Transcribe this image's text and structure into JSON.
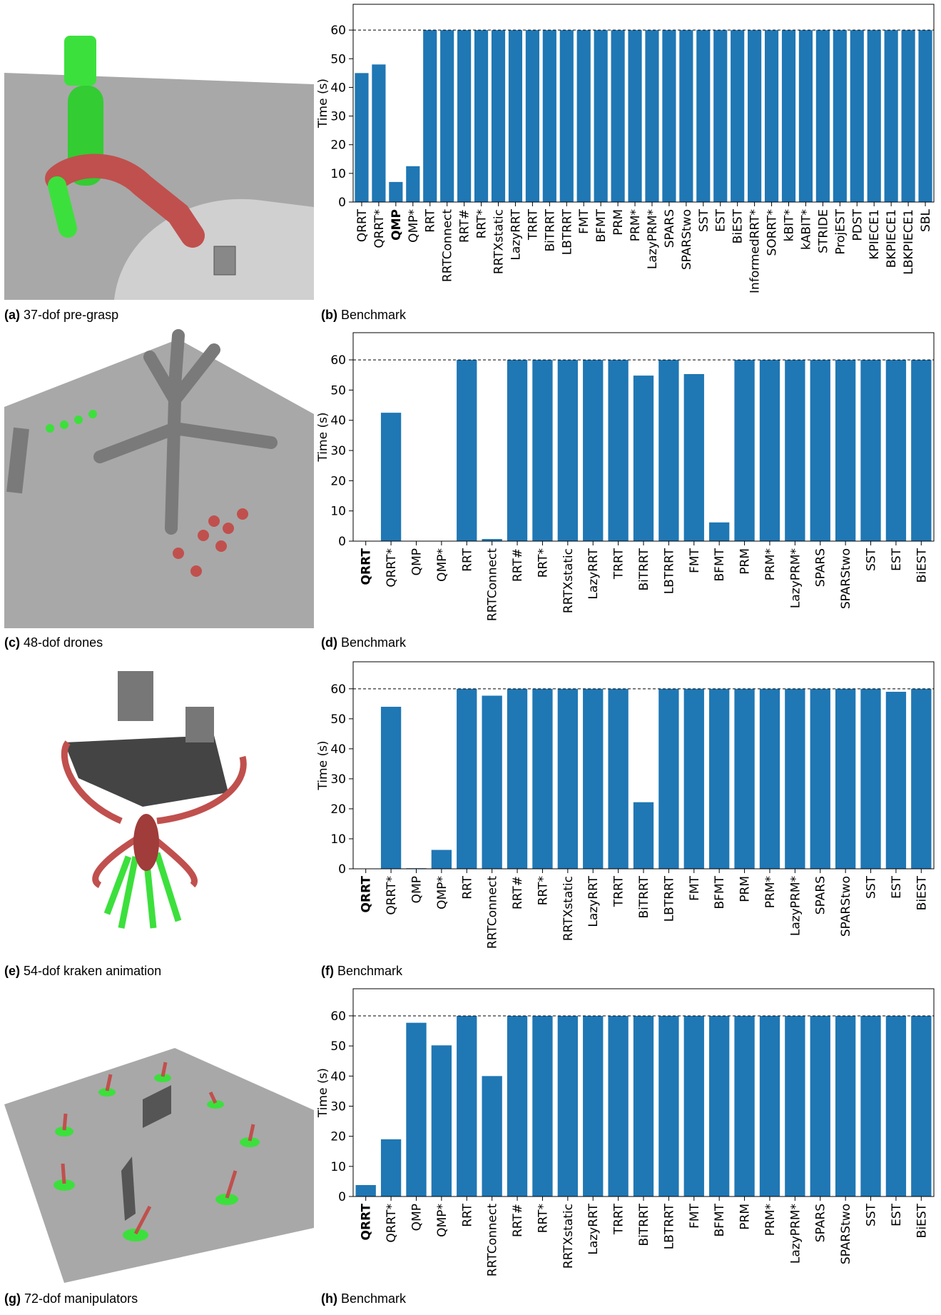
{
  "images": [
    {
      "label": "(a)",
      "caption": "37-dof pre-grasp"
    },
    {
      "label": "(c)",
      "caption": "48-dof drones"
    },
    {
      "label": "(e)",
      "caption": "54-dof kraken animation"
    },
    {
      "label": "(g)",
      "caption": "72-dof manipulators"
    }
  ],
  "chart_data": [
    {
      "type": "bar",
      "label": "(b)",
      "caption": "Benchmark",
      "ylabel": "Time (s)",
      "color": "#1f77b4",
      "bold_category": "QMP",
      "categories": [
        "QRRT",
        "QRRT*",
        "QMP",
        "QMP*",
        "RRT",
        "RRTConnect",
        "RRT#",
        "RRT*",
        "RRTXstatic",
        "LazyRRT",
        "TRRT",
        "BiTRRT",
        "LBTRRT",
        "FMT",
        "BFMT",
        "PRM",
        "PRM*",
        "LazyPRM*",
        "SPARS",
        "SPARStwo",
        "SST",
        "EST",
        "BiEST",
        "InformedRRT*",
        "SORRT*",
        "kBIT*",
        "kABIT*",
        "STRIDE",
        "ProjEST",
        "PDST",
        "KPIECE1",
        "BKPIECE1",
        "LBKPIECE1",
        "SBL"
      ],
      "values": [
        45,
        48,
        7,
        12.5,
        60,
        60,
        60,
        60,
        60,
        60,
        60,
        60,
        60,
        60,
        60,
        60,
        60,
        60,
        60,
        60,
        60,
        60,
        60,
        60,
        60,
        60,
        60,
        60,
        60,
        60,
        60,
        60,
        60,
        60
      ],
      "reference_line": 60,
      "ylim": [
        0,
        69
      ],
      "yticks": [
        0,
        10,
        20,
        30,
        40,
        50,
        60
      ]
    },
    {
      "type": "bar",
      "label": "(d)",
      "caption": "Benchmark",
      "ylabel": "Time (s)",
      "color": "#1f77b4",
      "bold_category": "QRRT",
      "categories": [
        "QRRT",
        "QRRT*",
        "QMP",
        "QMP*",
        "RRT",
        "RRTConnect",
        "RRT#",
        "RRT*",
        "RRTXstatic",
        "LazyRRT",
        "TRRT",
        "BiTRRT",
        "LBTRRT",
        "FMT",
        "BFMT",
        "PRM",
        "PRM*",
        "LazyPRM*",
        "SPARS",
        "SPARStwo",
        "SST",
        "EST",
        "BiEST"
      ],
      "values": [
        0,
        42.5,
        0,
        0,
        60,
        0.7,
        60,
        60,
        60,
        60,
        60,
        54.8,
        60,
        55.3,
        6.2,
        60,
        60,
        60,
        60,
        60,
        60,
        60,
        60
      ],
      "reference_line": 60,
      "ylim": [
        0,
        69
      ],
      "yticks": [
        0,
        10,
        20,
        30,
        40,
        50,
        60
      ]
    },
    {
      "type": "bar",
      "label": "(f)",
      "caption": "Benchmark",
      "ylabel": "Time (s)",
      "color": "#1f77b4",
      "bold_category": "QRRT",
      "categories": [
        "QRRT",
        "QRRT*",
        "QMP",
        "QMP*",
        "RRT",
        "RRTConnect",
        "RRT#",
        "RRT*",
        "RRTXstatic",
        "LazyRRT",
        "TRRT",
        "BiTRRT",
        "LBTRRT",
        "FMT",
        "BFMT",
        "PRM",
        "PRM*",
        "LazyPRM*",
        "SPARS",
        "SPARStwo",
        "SST",
        "EST",
        "BiEST"
      ],
      "values": [
        0,
        54,
        0.2,
        6.3,
        60,
        57.7,
        60,
        60,
        60,
        60,
        60,
        22.2,
        60,
        60,
        60,
        60,
        60,
        60,
        60,
        60,
        60,
        59,
        60
      ],
      "reference_line": 60,
      "ylim": [
        0,
        69
      ],
      "yticks": [
        0,
        10,
        20,
        30,
        40,
        50,
        60
      ]
    },
    {
      "type": "bar",
      "label": "(h)",
      "caption": "Benchmark",
      "ylabel": "Time (s)",
      "color": "#1f77b4",
      "bold_category": "QRRT",
      "categories": [
        "QRRT",
        "QRRT*",
        "QMP",
        "QMP*",
        "RRT",
        "RRTConnect",
        "RRT#",
        "RRT*",
        "RRTXstatic",
        "LazyRRT",
        "TRRT",
        "BiTRRT",
        "LBTRRT",
        "FMT",
        "BFMT",
        "PRM",
        "PRM*",
        "LazyPRM*",
        "SPARS",
        "SPARStwo",
        "SST",
        "EST",
        "BiEST"
      ],
      "values": [
        3.8,
        19,
        57.7,
        50.2,
        60,
        40,
        60,
        60,
        60,
        60,
        60,
        60,
        60,
        60,
        60,
        60,
        60,
        60,
        60,
        60,
        60,
        60,
        60
      ],
      "reference_line": 60,
      "ylim": [
        0,
        69
      ],
      "yticks": [
        0,
        10,
        20,
        30,
        40,
        50,
        60
      ]
    }
  ]
}
